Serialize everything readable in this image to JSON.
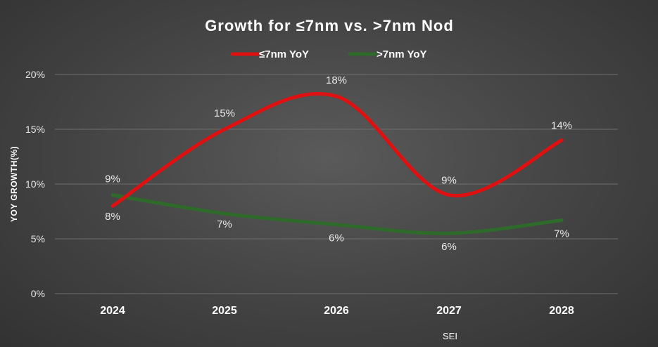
{
  "chart_data": {
    "type": "line",
    "title": "Growth for ≤7nm vs. >7nm Nod",
    "ylabel": "YOY GROWTH(%)",
    "xlabel": "",
    "source_text": "SEI",
    "categories": [
      "2024",
      "2025",
      "2026",
      "2027",
      "2028"
    ],
    "y_ticks": [
      "0%",
      "5%",
      "10%",
      "15%",
      "20%"
    ],
    "ylim": [
      0,
      20
    ],
    "legend_position": "top-center",
    "grid": true,
    "smooth": true,
    "series": [
      {
        "name": "≤7nm YoY",
        "color": "#e01010",
        "values": [
          8,
          15,
          18,
          9,
          14
        ],
        "labels": [
          "8%",
          "15%",
          "18%",
          "9%",
          "14%"
        ]
      },
      {
        "name": ">7nm YoY",
        "color": "#2e6b2a",
        "values": [
          9,
          7.3,
          6.3,
          5.5,
          6.7
        ],
        "labels": [
          "9%",
          "7%",
          "6%",
          "6%",
          "7%"
        ]
      }
    ]
  }
}
